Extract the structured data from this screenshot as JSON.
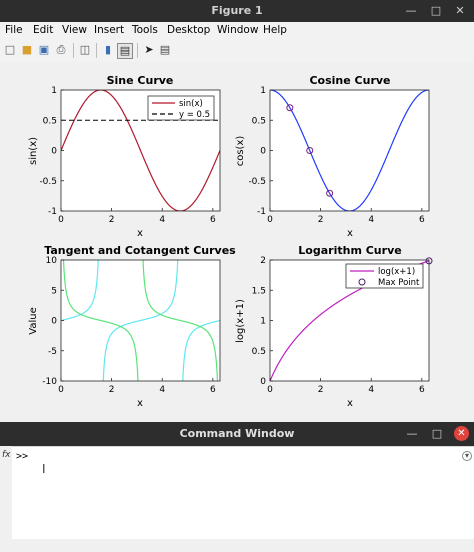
{
  "window": {
    "title": "Figure 1"
  },
  "menu": [
    "File",
    "Edit",
    "View",
    "Insert",
    "Tools",
    "Desktop",
    "Window",
    "Help"
  ],
  "toolbar_icons": [
    "new-figure-icon",
    "open-icon",
    "save-icon",
    "print-icon",
    "link-icon",
    "dock-icon",
    "insert-colorbar-icon",
    "cursor-icon",
    "property-editor-icon"
  ],
  "plots": [
    {
      "title": "Sine Curve",
      "xlabel": "x",
      "ylabel": "sin(x)",
      "xticks": [
        "0",
        "2",
        "4",
        "6"
      ],
      "yticks": [
        "1",
        "0.5",
        "0",
        "-0.5",
        "-1"
      ],
      "legend": [
        "sin(x)",
        "y = 0.5"
      ]
    },
    {
      "title": "Cosine Curve",
      "xlabel": "x",
      "ylabel": "cos(x)",
      "xticks": [
        "0",
        "2",
        "4",
        "6"
      ],
      "yticks": [
        "1",
        "0.5",
        "0",
        "-0.5",
        "-1"
      ]
    },
    {
      "title": "Tangent and Cotangent Curves",
      "xlabel": "x",
      "ylabel": "Value",
      "xticks": [
        "0",
        "2",
        "4",
        "6"
      ],
      "yticks": [
        "10",
        "5",
        "0",
        "-5",
        "-10"
      ]
    },
    {
      "title": "Logarithm Curve",
      "xlabel": "x",
      "ylabel": "log(x+1)",
      "xticks": [
        "0",
        "2",
        "4",
        "6"
      ],
      "yticks": [
        "2",
        "1.5",
        "1",
        "0.5",
        "0"
      ],
      "legend": [
        "log(x+1)",
        "Max Point"
      ]
    }
  ],
  "chart_data": [
    {
      "type": "line",
      "title": "Sine Curve",
      "xlabel": "x",
      "ylabel": "sin(x)",
      "xlim": [
        0,
        6.2832
      ],
      "ylim": [
        -1,
        1
      ],
      "series": [
        {
          "name": "sin(x)",
          "function": "sin(x)",
          "color": "#b2182b"
        },
        {
          "name": "y = 0.5",
          "constant": 0.5,
          "style": "dashed",
          "color": "#000000"
        }
      ]
    },
    {
      "type": "line",
      "title": "Cosine Curve",
      "xlabel": "x",
      "ylabel": "cos(x)",
      "xlim": [
        0,
        6.2832
      ],
      "ylim": [
        -1,
        1
      ],
      "series": [
        {
          "function": "cos(x)",
          "color": "#1f3cff"
        }
      ],
      "markers": {
        "x": [
          0.785,
          1.571,
          2.356
        ],
        "y": [
          0.707,
          0.0,
          -0.707
        ],
        "color": "#7a1f7a"
      }
    },
    {
      "type": "line",
      "title": "Tangent and Cotangent Curves",
      "xlabel": "x",
      "ylabel": "Value",
      "xlim": [
        0,
        6.2832
      ],
      "ylim": [
        -10,
        10
      ],
      "series": [
        {
          "function": "tan(x)",
          "color": "#5fe8f0"
        },
        {
          "function": "cot(x)",
          "color": "#59e37a"
        }
      ]
    },
    {
      "type": "line",
      "title": "Logarithm Curve",
      "xlabel": "x",
      "ylabel": "log(x+1)",
      "xlim": [
        0,
        6.2832
      ],
      "ylim": [
        0,
        2
      ],
      "series": [
        {
          "name": "log(x+1)",
          "function": "log(x+1)",
          "color": "#c020c0"
        }
      ],
      "max_point": {
        "name": "Max Point",
        "x": 6.2832,
        "y": 1.9855
      }
    }
  ],
  "command_window": {
    "title": "Command Window",
    "prompt": ">>",
    "fx_label": "fx"
  }
}
